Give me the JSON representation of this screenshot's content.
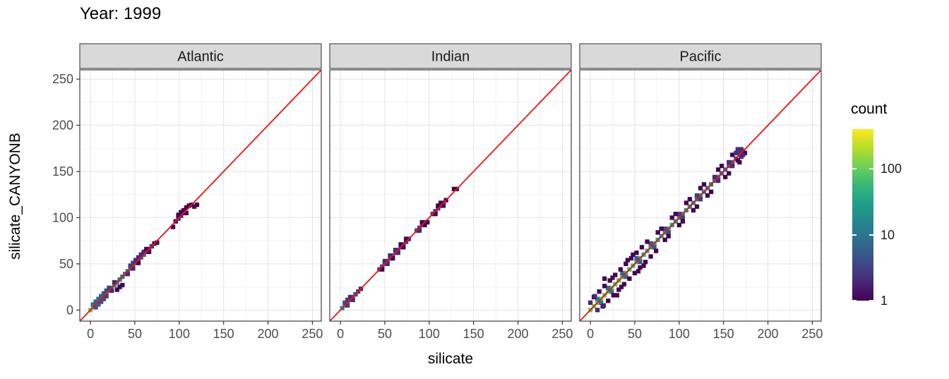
{
  "title": "Year: 1999",
  "axes": {
    "x_label": "silicate",
    "y_label": "silicate_CANYONB",
    "x_ticks": [
      0,
      50,
      100,
      150,
      200,
      250
    ],
    "y_ticks": [
      0,
      50,
      100,
      150,
      200,
      250
    ],
    "x_range": [
      -12,
      260
    ],
    "y_range": [
      -12,
      260
    ]
  },
  "legend": {
    "title": "count",
    "ticks": [
      100,
      10,
      1
    ],
    "max_count": 400
  },
  "colors": {
    "identity_line": "#ee1111",
    "strip_bg": "#d9d9d9",
    "panel_border": "#4d4d4d",
    "grid_major": "#e3e3e3",
    "grid_minor": "#f1f1f1",
    "tick_label": "#4d4d4d",
    "viridis_stops": [
      "#440154",
      "#482878",
      "#3e4a89",
      "#31688e",
      "#26828e",
      "#1f9e89",
      "#35b779",
      "#6ece58",
      "#b5de2b",
      "#fde725"
    ]
  },
  "chart_data": {
    "type": "heatmap",
    "title": "Year: 1999",
    "xlabel": "silicate",
    "ylabel": "silicate_CANYONB",
    "xlim": [
      -12,
      260
    ],
    "ylim": [
      -12,
      260
    ],
    "bin_size": 5,
    "count_scale": "log10",
    "identity_line": true,
    "legend_position": "right",
    "facets": [
      {
        "label": "Atlantic",
        "bins": [
          [
            0,
            0,
            90
          ],
          [
            3,
            3,
            120
          ],
          [
            6,
            6,
            100
          ],
          [
            9,
            9,
            80
          ],
          [
            12,
            12,
            70
          ],
          [
            15,
            15,
            60
          ],
          [
            18,
            18,
            50
          ],
          [
            21,
            21,
            40
          ],
          [
            24,
            24,
            30
          ],
          [
            27,
            27,
            25
          ],
          [
            30,
            30,
            20
          ],
          [
            3,
            6,
            8
          ],
          [
            6,
            9,
            6
          ],
          [
            9,
            12,
            8
          ],
          [
            12,
            15,
            6
          ],
          [
            15,
            18,
            5
          ],
          [
            6,
            3,
            5
          ],
          [
            9,
            6,
            6
          ],
          [
            12,
            9,
            4
          ],
          [
            18,
            21,
            4
          ],
          [
            21,
            24,
            3
          ],
          [
            15,
            12,
            4
          ],
          [
            18,
            15,
            3
          ],
          [
            24,
            21,
            2
          ],
          [
            27,
            30,
            2
          ],
          [
            33,
            25,
            1
          ],
          [
            36,
            27,
            1
          ],
          [
            30,
            22,
            1
          ],
          [
            33,
            33,
            15
          ],
          [
            36,
            36,
            12
          ],
          [
            39,
            39,
            10
          ],
          [
            42,
            42,
            10
          ],
          [
            45,
            45,
            9
          ],
          [
            48,
            48,
            8
          ],
          [
            51,
            51,
            10
          ],
          [
            54,
            54,
            8
          ],
          [
            57,
            57,
            6
          ],
          [
            60,
            60,
            5
          ],
          [
            63,
            63,
            4
          ],
          [
            66,
            66,
            3
          ],
          [
            69,
            69,
            2
          ],
          [
            45,
            48,
            3
          ],
          [
            48,
            51,
            3
          ],
          [
            51,
            54,
            2
          ],
          [
            54,
            57,
            2
          ],
          [
            57,
            60,
            2
          ],
          [
            42,
            39,
            2
          ],
          [
            48,
            45,
            2
          ],
          [
            54,
            51,
            1
          ],
          [
            60,
            63,
            2
          ],
          [
            63,
            66,
            1
          ],
          [
            66,
            63,
            1
          ],
          [
            72,
            72,
            1
          ],
          [
            75,
            73,
            1
          ],
          [
            93,
            90,
            1
          ],
          [
            96,
            96,
            1
          ],
          [
            99,
            99,
            2
          ],
          [
            102,
            102,
            2
          ],
          [
            105,
            105,
            1
          ],
          [
            105,
            108,
            1
          ],
          [
            108,
            111,
            1
          ],
          [
            111,
            113,
            1
          ],
          [
            114,
            114,
            1
          ],
          [
            117,
            112,
            1
          ],
          [
            120,
            114,
            1
          ],
          [
            108,
            105,
            1
          ],
          [
            102,
            106,
            1
          ],
          [
            99,
            103,
            1
          ]
        ]
      },
      {
        "label": "Indian",
        "bins": [
          [
            2,
            2,
            25
          ],
          [
            5,
            5,
            18
          ],
          [
            8,
            8,
            12
          ],
          [
            11,
            11,
            8
          ],
          [
            14,
            14,
            6
          ],
          [
            17,
            17,
            4
          ],
          [
            20,
            20,
            3
          ],
          [
            5,
            8,
            4
          ],
          [
            8,
            11,
            3
          ],
          [
            11,
            14,
            2
          ],
          [
            8,
            5,
            3
          ],
          [
            14,
            11,
            2
          ],
          [
            23,
            23,
            2
          ],
          [
            44,
            44,
            3
          ],
          [
            47,
            47,
            4
          ],
          [
            50,
            50,
            5
          ],
          [
            53,
            53,
            4
          ],
          [
            56,
            56,
            4
          ],
          [
            59,
            59,
            5
          ],
          [
            62,
            62,
            5
          ],
          [
            65,
            65,
            4
          ],
          [
            68,
            68,
            3
          ],
          [
            71,
            71,
            3
          ],
          [
            74,
            74,
            2
          ],
          [
            77,
            77,
            2
          ],
          [
            50,
            53,
            2
          ],
          [
            56,
            59,
            2
          ],
          [
            62,
            65,
            2
          ],
          [
            68,
            71,
            1
          ],
          [
            53,
            50,
            2
          ],
          [
            59,
            56,
            1
          ],
          [
            65,
            62,
            2
          ],
          [
            71,
            68,
            1
          ],
          [
            47,
            44,
            1
          ],
          [
            74,
            77,
            1
          ],
          [
            86,
            86,
            3
          ],
          [
            89,
            89,
            3
          ],
          [
            92,
            92,
            4
          ],
          [
            95,
            95,
            2
          ],
          [
            89,
            86,
            2
          ],
          [
            92,
            95,
            1
          ],
          [
            95,
            92,
            1
          ],
          [
            98,
            95,
            1
          ],
          [
            104,
            104,
            2
          ],
          [
            107,
            107,
            3
          ],
          [
            110,
            110,
            3
          ],
          [
            113,
            113,
            2
          ],
          [
            116,
            116,
            2
          ],
          [
            107,
            104,
            1
          ],
          [
            110,
            113,
            1
          ],
          [
            113,
            116,
            1
          ],
          [
            116,
            113,
            1
          ],
          [
            119,
            119,
            1
          ],
          [
            128,
            131,
            1
          ],
          [
            131,
            131,
            1
          ]
        ]
      },
      {
        "label": "Pacific",
        "bins": [
          [
            0,
            0,
            100
          ],
          [
            4,
            4,
            110
          ],
          [
            8,
            8,
            105
          ],
          [
            12,
            12,
            100
          ],
          [
            16,
            16,
            95
          ],
          [
            20,
            20,
            90
          ],
          [
            24,
            24,
            85
          ],
          [
            28,
            28,
            80
          ],
          [
            32,
            32,
            75
          ],
          [
            36,
            36,
            70
          ],
          [
            40,
            40,
            65
          ],
          [
            44,
            44,
            60
          ],
          [
            48,
            48,
            58
          ],
          [
            52,
            52,
            55
          ],
          [
            56,
            56,
            52
          ],
          [
            60,
            60,
            50
          ],
          [
            64,
            64,
            46
          ],
          [
            68,
            68,
            42
          ],
          [
            72,
            72,
            40
          ],
          [
            76,
            76,
            38
          ],
          [
            80,
            80,
            36
          ],
          [
            84,
            84,
            34
          ],
          [
            88,
            88,
            32
          ],
          [
            92,
            92,
            30
          ],
          [
            96,
            96,
            28
          ],
          [
            100,
            100,
            27
          ],
          [
            104,
            104,
            26
          ],
          [
            108,
            108,
            25
          ],
          [
            112,
            112,
            24
          ],
          [
            116,
            116,
            22
          ],
          [
            120,
            120,
            21
          ],
          [
            124,
            124,
            20
          ],
          [
            128,
            128,
            18
          ],
          [
            132,
            132,
            16
          ],
          [
            136,
            136,
            15
          ],
          [
            140,
            140,
            14
          ],
          [
            144,
            144,
            12
          ],
          [
            148,
            148,
            11
          ],
          [
            152,
            152,
            10
          ],
          [
            156,
            156,
            9
          ],
          [
            160,
            160,
            8
          ],
          [
            164,
            164,
            6
          ],
          [
            168,
            168,
            5
          ],
          [
            172,
            172,
            4
          ],
          [
            8,
            12,
            15
          ],
          [
            12,
            8,
            12
          ],
          [
            20,
            24,
            10
          ],
          [
            24,
            20,
            10
          ],
          [
            36,
            40,
            8
          ],
          [
            40,
            36,
            8
          ],
          [
            52,
            56,
            6
          ],
          [
            56,
            52,
            6
          ],
          [
            68,
            72,
            5
          ],
          [
            72,
            68,
            5
          ],
          [
            84,
            88,
            4
          ],
          [
            88,
            84,
            4
          ],
          [
            100,
            104,
            3
          ],
          [
            104,
            100,
            3
          ],
          [
            120,
            124,
            3
          ],
          [
            124,
            120,
            3
          ],
          [
            140,
            144,
            2
          ],
          [
            144,
            140,
            2
          ],
          [
            156,
            160,
            2
          ],
          [
            160,
            156,
            2
          ],
          [
            0,
            8,
            2
          ],
          [
            8,
            0,
            2
          ],
          [
            4,
            14,
            1
          ],
          [
            14,
            4,
            1
          ],
          [
            10,
            20,
            1
          ],
          [
            20,
            10,
            1
          ],
          [
            16,
            26,
            1
          ],
          [
            26,
            16,
            1
          ],
          [
            22,
            32,
            1
          ],
          [
            32,
            22,
            1
          ],
          [
            28,
            38,
            1
          ],
          [
            38,
            28,
            1
          ],
          [
            34,
            44,
            1
          ],
          [
            44,
            34,
            1
          ],
          [
            40,
            50,
            1
          ],
          [
            50,
            40,
            1
          ],
          [
            46,
            56,
            1
          ],
          [
            56,
            46,
            1
          ],
          [
            52,
            62,
            1
          ],
          [
            62,
            52,
            1
          ],
          [
            58,
            68,
            1
          ],
          [
            68,
            58,
            1
          ],
          [
            64,
            74,
            1
          ],
          [
            74,
            64,
            1
          ],
          [
            80,
            88,
            1
          ],
          [
            88,
            80,
            1
          ],
          [
            96,
            104,
            1
          ],
          [
            104,
            96,
            1
          ],
          [
            112,
            120,
            1
          ],
          [
            120,
            112,
            1
          ],
          [
            128,
            136,
            1
          ],
          [
            136,
            128,
            1
          ],
          [
            144,
            152,
            1
          ],
          [
            152,
            144,
            1
          ],
          [
            160,
            168,
            1
          ],
          [
            168,
            160,
            1
          ],
          [
            166,
            174,
            2
          ],
          [
            170,
            166,
            2
          ],
          [
            174,
            170,
            1
          ],
          [
            30,
            16,
            1
          ],
          [
            16,
            34,
            1
          ],
          [
            48,
            60,
            1
          ],
          [
            60,
            48,
            1
          ],
          [
            76,
            84,
            1
          ],
          [
            84,
            76,
            1
          ],
          [
            92,
            100,
            1
          ],
          [
            100,
            92,
            1
          ],
          [
            108,
            116,
            1
          ],
          [
            116,
            108,
            1
          ],
          [
            132,
            124,
            1
          ],
          [
            124,
            132,
            1
          ],
          [
            148,
            156,
            1
          ],
          [
            156,
            148,
            1
          ],
          [
            164,
            170,
            2
          ],
          [
            168,
            172,
            3
          ],
          [
            170,
            174,
            2
          ],
          [
            172,
            168,
            2
          ],
          [
            166,
            162,
            1
          ],
          [
            5,
            15,
            2
          ],
          [
            15,
            5,
            2
          ],
          [
            25,
            35,
            1
          ],
          [
            35,
            25,
            1
          ],
          [
            42,
            54,
            1
          ],
          [
            54,
            42,
            1
          ]
        ]
      }
    ]
  }
}
